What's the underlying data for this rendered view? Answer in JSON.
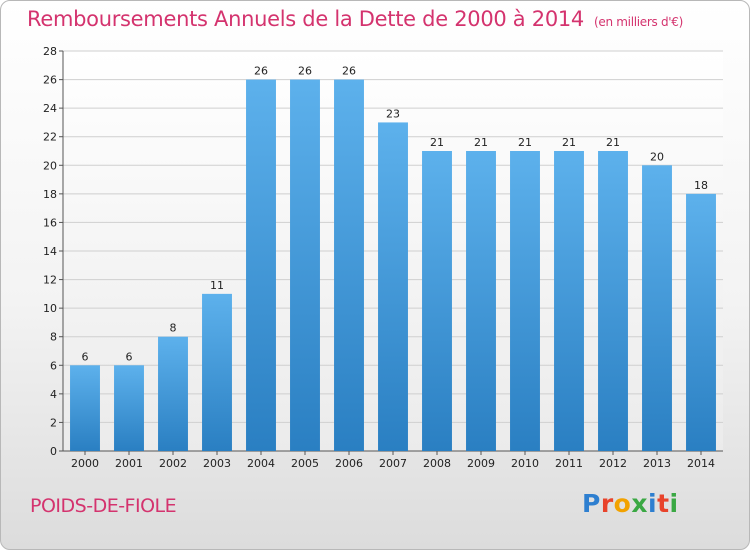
{
  "title": "Remboursements Annuels de la Dette de 2000 à 2014",
  "unit": "(en milliers d'€)",
  "commune": "POIDS-DE-FIOLE",
  "logo": {
    "text": "Proxiti",
    "colors": [
      "#2e7fd0",
      "#e8432b",
      "#f2a200",
      "#3aa843",
      "#2e7fd0",
      "#e8432b",
      "#3aa843"
    ]
  },
  "colors": {
    "bar_light": "#5db1ec",
    "bar_dark": "#2a7fc2",
    "grid": "#cfcfcf",
    "text": "#222222",
    "accent": "#d4336e"
  },
  "chart_data": {
    "type": "bar",
    "categories": [
      "2000",
      "2001",
      "2002",
      "2003",
      "2004",
      "2005",
      "2006",
      "2007",
      "2008",
      "2009",
      "2010",
      "2011",
      "2012",
      "2013",
      "2014"
    ],
    "values": [
      6,
      6,
      8,
      11,
      26,
      26,
      26,
      23,
      21,
      21,
      21,
      21,
      21,
      20,
      18
    ],
    "ylim": [
      0,
      28
    ],
    "yticks": [
      0,
      2,
      4,
      6,
      8,
      10,
      12,
      14,
      16,
      18,
      20,
      22,
      24,
      26,
      28
    ],
    "grid": true,
    "title": "Remboursements Annuels de la Dette de 2000 à 2014",
    "xlabel": "",
    "ylabel": ""
  }
}
